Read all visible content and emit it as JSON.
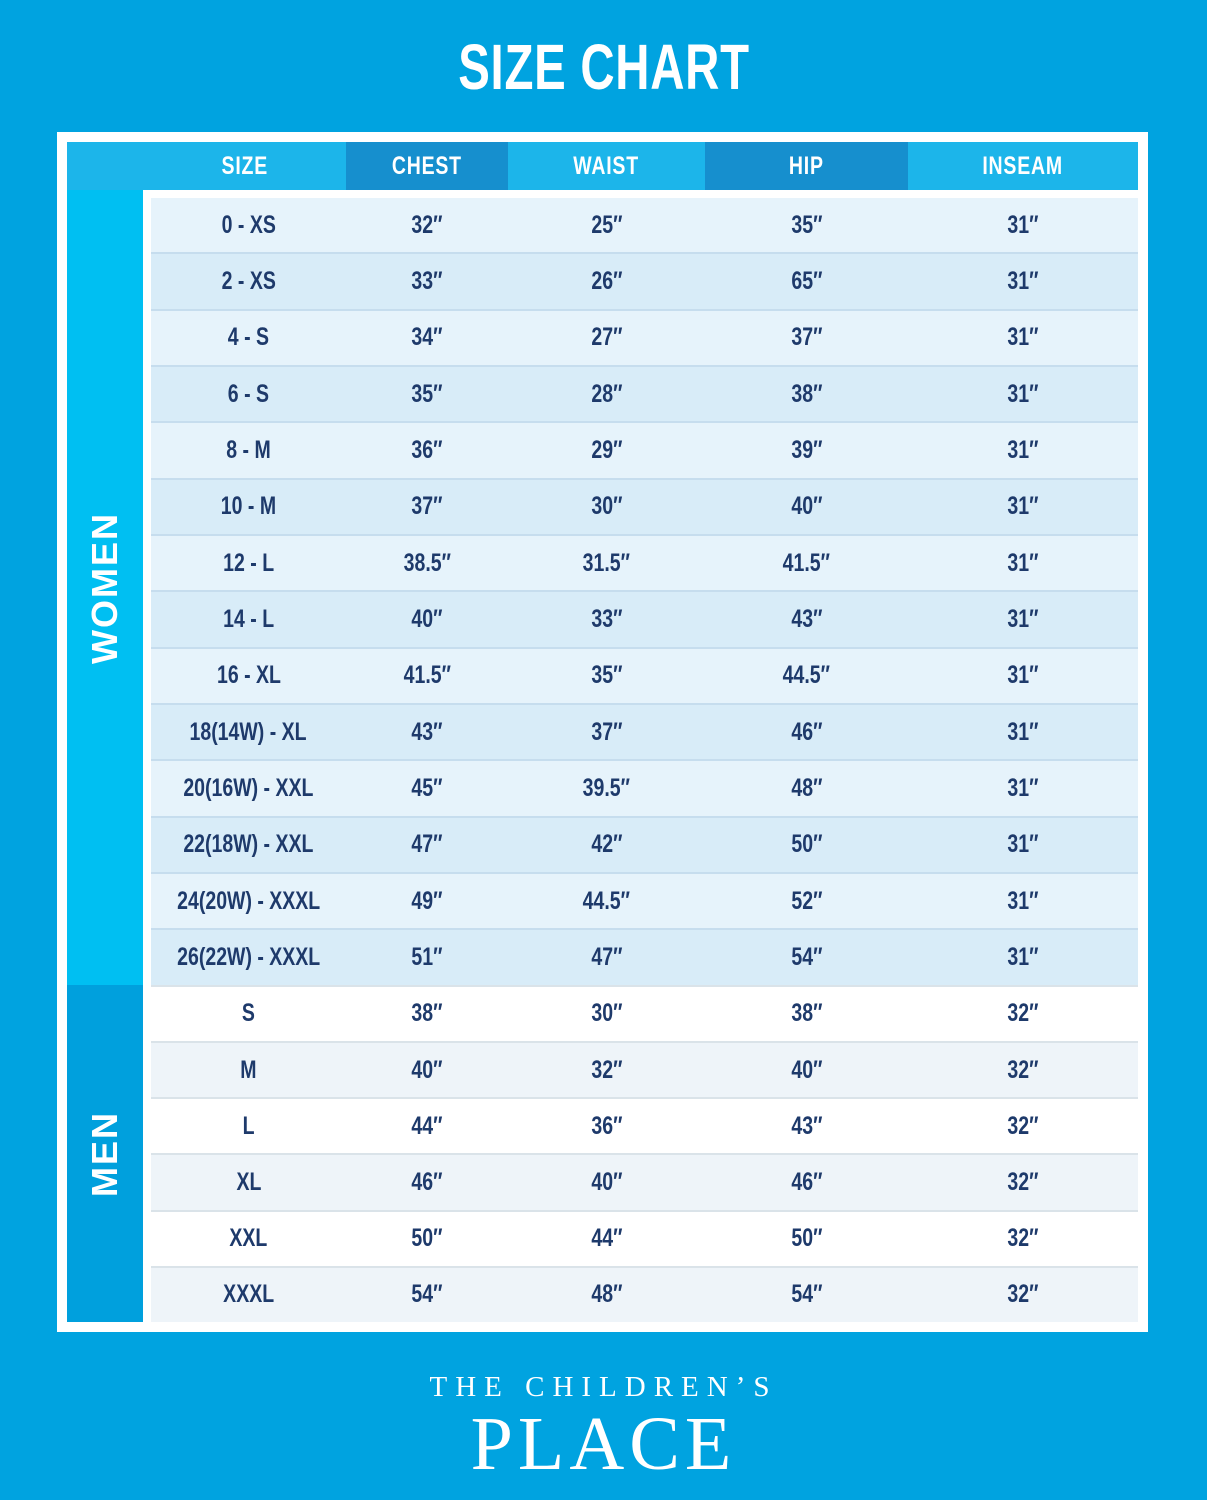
{
  "title": "SIZE CHART",
  "chart_data": {
    "type": "table",
    "title": "SIZE CHART",
    "columns": [
      "SIZE",
      "CHEST",
      "WAIST",
      "HIP",
      "INSEAM"
    ],
    "sections": [
      {
        "label": "WOMEN",
        "rows": [
          [
            "0 - XS",
            "32″",
            "25″",
            "35″",
            "31″"
          ],
          [
            "2 - XS",
            "33″",
            "26″",
            "65″",
            "31″"
          ],
          [
            "4 - S",
            "34″",
            "27″",
            "37″",
            "31″"
          ],
          [
            "6 - S",
            "35″",
            "28″",
            "38″",
            "31″"
          ],
          [
            "8 - M",
            "36″",
            "29″",
            "39″",
            "31″"
          ],
          [
            "10 - M",
            "37″",
            "30″",
            "40″",
            "31″"
          ],
          [
            "12 - L",
            "38.5″",
            "31.5″",
            "41.5″",
            "31″"
          ],
          [
            "14 - L",
            "40″",
            "33″",
            "43″",
            "31″"
          ],
          [
            "16 - XL",
            "41.5″",
            "35″",
            "44.5″",
            "31″"
          ],
          [
            "18(14W) - XL",
            "43″",
            "37″",
            "46″",
            "31″"
          ],
          [
            "20(16W) - XXL",
            "45″",
            "39.5″",
            "48″",
            "31″"
          ],
          [
            "22(18W) - XXL",
            "47″",
            "42″",
            "50″",
            "31″"
          ],
          [
            "24(20W) - XXXL",
            "49″",
            "44.5″",
            "52″",
            "31″"
          ],
          [
            "26(22W) - XXXL",
            "51″",
            "47″",
            "54″",
            "31″"
          ]
        ]
      },
      {
        "label": "MEN",
        "rows": [
          [
            "S",
            "38″",
            "30″",
            "38″",
            "32″"
          ],
          [
            "M",
            "40″",
            "32″",
            "40″",
            "32″"
          ],
          [
            "L",
            "44″",
            "36″",
            "43″",
            "32″"
          ],
          [
            "XL",
            "46″",
            "40″",
            "46″",
            "32″"
          ],
          [
            "XXL",
            "50″",
            "44″",
            "50″",
            "32″"
          ],
          [
            "XXXL",
            "54″",
            "48″",
            "54″",
            "32″"
          ]
        ]
      }
    ],
    "layout": {
      "legend": "none",
      "grid": "row-separators",
      "row_striping": true
    }
  },
  "footer": {
    "line1": "THE CHILDREN’S",
    "line2": "PLACE"
  },
  "colors": {
    "background": "#00A3E0",
    "header_light": "#1CB5EA",
    "header_dark": "#168FCE",
    "women_band": "#00BFF2",
    "men_band": "#00A0DD",
    "women_row_odd": "#E6F3FB",
    "women_row_even": "#D8ECF8",
    "men_row_odd": "#FFFFFF",
    "men_row_even": "#EEF4F9",
    "cell_text": "#1E3A6B",
    "title_text": "#FFFFFF"
  }
}
